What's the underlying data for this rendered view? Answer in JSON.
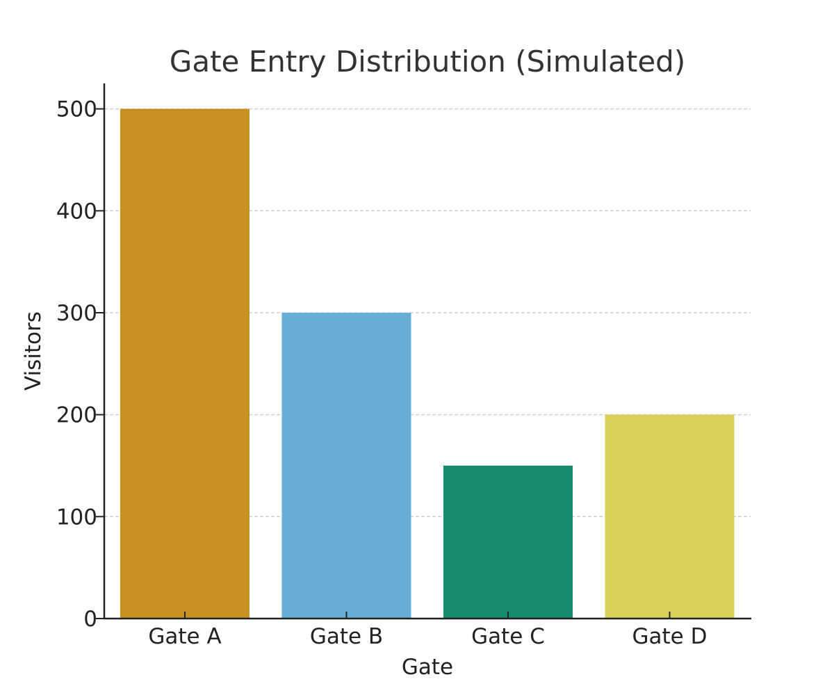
{
  "chart_data": {
    "type": "bar",
    "title": "Gate Entry Distribution (Simulated)",
    "xlabel": "Gate",
    "ylabel": "Visitors",
    "categories": [
      "Gate A",
      "Gate B",
      "Gate C",
      "Gate D"
    ],
    "values": [
      500,
      300,
      150,
      200
    ],
    "colors": [
      "#c6921f",
      "#67aed6",
      "#168a6c",
      "#d9d15a"
    ],
    "ylim": [
      0,
      525
    ],
    "yticks": [
      0,
      100,
      200,
      300,
      400,
      500
    ],
    "grid": "y-dashed",
    "legend": "none"
  }
}
